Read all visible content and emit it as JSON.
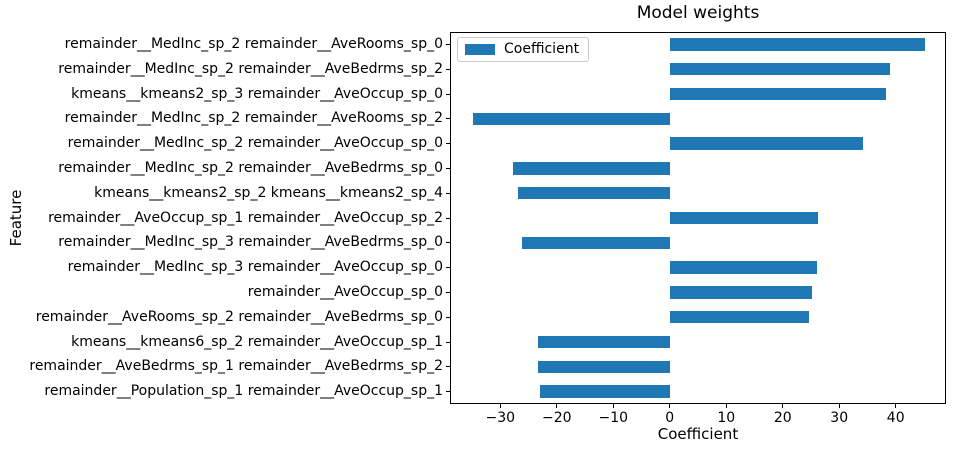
{
  "figure": {
    "background": "#ffffff"
  },
  "chart_data": {
    "type": "bar",
    "orientation": "horizontal",
    "title": "Model weights",
    "xlabel": "Coefficient",
    "ylabel": "Feature",
    "bar_color": "#1f77b4",
    "grid": false,
    "legend": {
      "position": "upper left",
      "entries": [
        {
          "label": "Coefficient",
          "color": "#1f77b4"
        }
      ]
    },
    "xlim": [
      -38.9,
      48.9
    ],
    "x_ticks": [
      -30,
      -20,
      -10,
      0,
      10,
      20,
      30,
      40
    ],
    "categories": [
      "remainder__MedInc_sp_2 remainder__AveRooms_sp_0",
      "remainder__MedInc_sp_2 remainder__AveBedrms_sp_2",
      "kmeans__kmeans2_sp_3 remainder__AveOccup_sp_0",
      "remainder__MedInc_sp_2 remainder__AveRooms_sp_2",
      "remainder__MedInc_sp_2 remainder__AveOccup_sp_0",
      "remainder__MedInc_sp_2 remainder__AveBedrms_sp_0",
      "kmeans__kmeans2_sp_2 kmeans__kmeans2_sp_4",
      "remainder__AveOccup_sp_1 remainder__AveOccup_sp_2",
      "remainder__MedInc_sp_3 remainder__AveBedrms_sp_0",
      "remainder__MedInc_sp_3 remainder__AveOccup_sp_0",
      "remainder__AveOccup_sp_0",
      "remainder__AveRooms_sp_2 remainder__AveBedrms_sp_0",
      "kmeans__kmeans6_sp_2 remainder__AveOccup_sp_1",
      "remainder__AveBedrms_sp_1 remainder__AveBedrms_sp_2",
      "remainder__Population_sp_1 remainder__AveOccup_sp_1"
    ],
    "values": [
      45.1,
      38.9,
      38.3,
      -34.9,
      34.2,
      -27.7,
      -26.9,
      26.3,
      -26.2,
      26.1,
      25.2,
      24.6,
      -23.4,
      -23.3,
      -23.0
    ]
  }
}
